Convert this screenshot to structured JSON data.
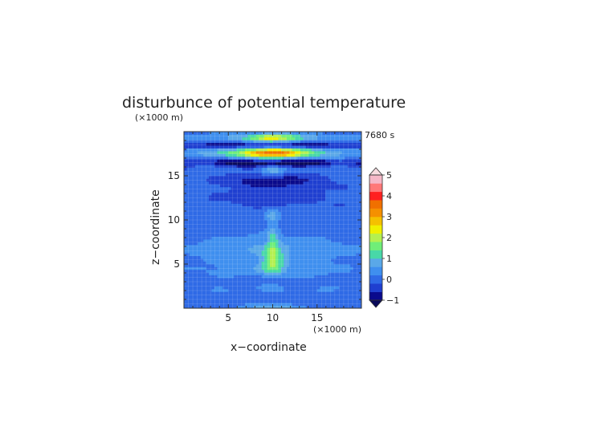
{
  "chart_data": {
    "type": "heatmap",
    "title": "disturbunce of potential temperature",
    "time_label": "7680 s",
    "xlabel": "x−coordinate",
    "ylabel": "z−coordinate",
    "x_unit": "(×1000 m)",
    "y_unit": "(×1000 m)",
    "xlim": [
      0,
      20
    ],
    "ylim": [
      0,
      20
    ],
    "x_ticks": [
      5,
      10,
      15
    ],
    "y_ticks": [
      5,
      10,
      15
    ],
    "x_tick_labels": [
      "5",
      "10",
      "15"
    ],
    "y_tick_labels": [
      "5",
      "10",
      "15"
    ],
    "grid": true,
    "colorbar": {
      "min": -1,
      "max": 5,
      "step": 0.5,
      "tick_values": [
        -1,
        0,
        1,
        2,
        3,
        4,
        5
      ],
      "tick_labels": [
        "−1",
        "0",
        "1",
        "2",
        "3",
        "4",
        "5"
      ],
      "colors": [
        "#0a0a8c",
        "#1f3fd0",
        "#2f6ae6",
        "#3f8fef",
        "#5aa8e8",
        "#48d8a8",
        "#70ee78",
        "#b4f050",
        "#f0f000",
        "#f5c000",
        "#f59000",
        "#f07000",
        "#ff2020",
        "#ff7878",
        "#f5b8c8"
      ],
      "under_color": "#0a0a5a",
      "over_color": "#f8dce0"
    },
    "features": [
      {
        "x": 10,
        "z": 5.3,
        "sx": 0.9,
        "sz": 1.0,
        "amp": 1.7
      },
      {
        "x": 10,
        "z": 7.6,
        "sx": 0.45,
        "sz": 1.4,
        "amp": 1.2
      },
      {
        "x": 10,
        "z": 10.5,
        "sx": 0.6,
        "sz": 0.6,
        "amp": 0.9
      },
      {
        "x": 10,
        "z": 6.8,
        "sx": 7.0,
        "sz": 1.2,
        "amp": 0.85
      },
      {
        "x": 10,
        "z": 4.2,
        "sx": 6.0,
        "sz": 0.7,
        "amp": 0.6
      },
      {
        "x": 10,
        "z": 2.3,
        "sx": 1.5,
        "sz": 0.4,
        "amp": 0.55
      },
      {
        "x": 4.0,
        "z": 2.2,
        "sx": 1.2,
        "sz": 0.3,
        "amp": 0.5
      },
      {
        "x": 16.0,
        "z": 2.2,
        "sx": 1.2,
        "sz": 0.3,
        "amp": 0.5
      },
      {
        "x": 10,
        "z": 0.1,
        "sx": 2.5,
        "sz": 0.3,
        "amp": 1.2
      },
      {
        "x": 10,
        "z": 15.7,
        "sx": 1.0,
        "sz": 0.35,
        "amp": 1.5
      },
      {
        "x": 10,
        "z": 17.6,
        "sx": 2.5,
        "sz": 0.4,
        "amp": 3.2
      },
      {
        "x": 10,
        "z": 17.6,
        "sx": 8.0,
        "sz": 0.5,
        "amp": 1.5
      },
      {
        "x": 10,
        "z": 19.3,
        "sx": 2.0,
        "sz": 0.35,
        "amp": 2.2
      },
      {
        "x": 10,
        "z": 19.3,
        "sx": 9.0,
        "sz": 0.4,
        "amp": 0.9
      },
      {
        "x": 2.5,
        "z": 16.3,
        "sx": 1.0,
        "sz": 0.4,
        "amp": 0.7
      },
      {
        "x": 17.5,
        "z": 16.3,
        "sx": 1.0,
        "sz": 0.4,
        "amp": 0.7
      },
      {
        "x": 10,
        "z": 16.5,
        "sx": 9.0,
        "sz": 0.35,
        "amp": -1.6
      },
      {
        "x": 10,
        "z": 18.5,
        "sx": 9.0,
        "sz": 0.3,
        "amp": -1.4
      },
      {
        "x": 10,
        "z": 14.4,
        "sx": 4.0,
        "sz": 0.6,
        "amp": -1.0
      },
      {
        "x": 10,
        "z": 12.5,
        "sx": 5.5,
        "sz": 0.8,
        "amp": -0.4
      },
      {
        "x": 10,
        "z": 8.3,
        "sx": 6.0,
        "sz": 1.0,
        "amp": -0.1
      },
      {
        "x": 10,
        "z": 3.2,
        "sx": 4.0,
        "sz": 0.6,
        "amp": -0.25
      }
    ]
  }
}
